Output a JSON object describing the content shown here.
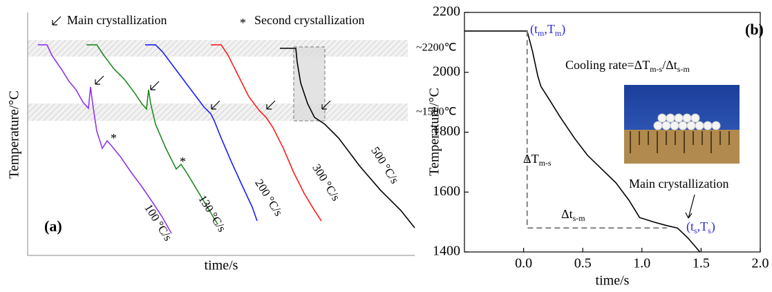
{
  "chart_data": [
    {
      "type": "line",
      "panel_label": "(a)",
      "xlabel": "time/s",
      "ylabel": "Temperature/°C",
      "xlim": [
        0,
        56
      ],
      "ylim": [
        -50,
        2575
      ],
      "main_label": "Main crystallization",
      "second_symbol": "*",
      "second_label": "Second crystallization",
      "band_labels": [
        "~2200℃",
        "~1500℃"
      ],
      "series": [
        {
          "name": "100 °C/s",
          "color": "#8e35ef",
          "x": [
            1.5,
            2.8,
            3.5,
            5.0,
            6.0,
            7.0,
            8.0,
            8.8,
            9.1,
            9.4,
            10.0,
            10.8,
            11.5,
            12.2,
            13.5,
            15.0,
            16.5,
            18.0,
            19.5,
            20.8
          ],
          "values": [
            2238,
            2238,
            2125,
            1960,
            1840,
            1750,
            1615,
            1548,
            1780,
            1600,
            1300,
            1113,
            1195,
            1135,
            1015,
            850,
            700,
            535,
            363,
            190
          ]
        },
        {
          "name": "130 °C/s",
          "color": "#1f8a1f",
          "x": [
            8.5,
            10.0,
            11.0,
            12.5,
            14.0,
            15.5,
            16.5,
            17.2,
            17.5,
            17.8,
            18.5,
            20.0,
            21.5,
            22.2,
            23.0,
            24.5,
            26.0,
            27.5
          ],
          "values": [
            2238,
            2238,
            2125,
            1975,
            1863,
            1713,
            1600,
            1540,
            1750,
            1600,
            1375,
            1113,
            888,
            940,
            850,
            663,
            475,
            288
          ]
        },
        {
          "name": "200 °C/s",
          "color": "#1a1aff",
          "x": [
            17.0,
            18.5,
            19.5,
            21.0,
            22.5,
            24.0,
            25.5,
            26.5,
            27.0,
            28.0,
            29.5,
            31.0,
            32.5,
            33.2
          ],
          "values": [
            2238,
            2238,
            2163,
            2013,
            1863,
            1713,
            1563,
            1488,
            1413,
            1225,
            963,
            715,
            475,
            325
          ]
        },
        {
          "name": "300 °C/s",
          "color": "#ff1a1a",
          "x": [
            26.5,
            28.0,
            29.0,
            30.5,
            32.0,
            33.5,
            34.5,
            35.5,
            37.0,
            38.5,
            40.0,
            41.5,
            42.5
          ],
          "values": [
            2238,
            2238,
            2125,
            1900,
            1675,
            1525,
            1450,
            1338,
            1113,
            850,
            625,
            438,
            325
          ]
        },
        {
          "name": "500 °C/s",
          "color": "#000000",
          "x": [
            36.5,
            38.8,
            39.0,
            39.5,
            40.5,
            41.5,
            43.0,
            45.0,
            48.0,
            51.0,
            54.0,
            56.0
          ],
          "values": [
            2200,
            2200,
            2050,
            1825,
            1600,
            1450,
            1375,
            1225,
            925,
            663,
            438,
            250
          ]
        }
      ]
    },
    {
      "type": "line",
      "panel_label": "(b)",
      "xlabel": "time/s",
      "ylabel": "Temperature/°C",
      "xlim": [
        -0.5,
        2.0
      ],
      "ylim": [
        1400,
        2200
      ],
      "xticks": [
        {
          "value": 0,
          "label": "0.0"
        },
        0.5,
        {
          "value": 1,
          "label": "1.0"
        },
        1.5,
        {
          "value": 2,
          "label": "2.0"
        }
      ],
      "yticks": [
        1400,
        1600,
        1800,
        2000,
        2200
      ],
      "tm_label": [
        "(t",
        "m",
        ",T",
        "m",
        ")"
      ],
      "rate_label": [
        "Cooling rate=ΔT",
        "m-s",
        "/Δt",
        "s-m"
      ],
      "dT_label": [
        "ΔT",
        "m-s"
      ],
      "dt_label": [
        "Δt",
        "s-m"
      ],
      "main_label": "Main crystallization",
      "ts_label": [
        "(t",
        "s",
        ",T",
        "s",
        ")"
      ],
      "series": [
        {
          "color": "#000000",
          "x": [
            -0.5,
            0.03,
            0.076,
            0.12,
            0.146,
            0.22,
            0.31,
            0.43,
            0.54,
            0.66,
            0.78,
            0.89,
            0.98,
            1.1,
            1.21,
            1.3,
            1.39,
            1.49
          ],
          "values": [
            2138,
            2138,
            2069,
            1988,
            1953,
            1907,
            1850,
            1780,
            1723,
            1677,
            1631,
            1573,
            1515,
            1500,
            1488,
            1480,
            1446,
            1400
          ]
        }
      ]
    }
  ]
}
